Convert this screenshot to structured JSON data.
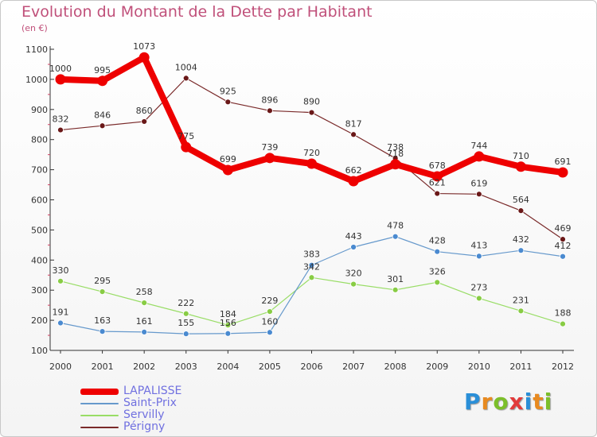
{
  "title": "Evolution du Montant de la Dette par Habitant",
  "subtitle": "(en €)",
  "chart_data": {
    "type": "line",
    "title": "Evolution du Montant de la Dette par Habitant",
    "subtitle": "(en €)",
    "xlabel": "",
    "ylabel": "",
    "x": [
      "2000",
      "2001",
      "2002",
      "2003",
      "2004",
      "2005",
      "2006",
      "2007",
      "2008",
      "2009",
      "2010",
      "2011",
      "2012"
    ],
    "ylim": [
      100,
      1100
    ],
    "yticks": [
      100,
      200,
      300,
      400,
      500,
      600,
      700,
      800,
      900,
      1000,
      1100
    ],
    "grid": false,
    "legend_position": "bottom-left",
    "series": [
      {
        "name": "LAPALISSE",
        "color": "#ee0000",
        "values": [
          1000,
          995,
          1073,
          775,
          699,
          739,
          720,
          662,
          718,
          678,
          744,
          710,
          691
        ]
      },
      {
        "name": "Saint-Prix",
        "color": "#6699cc",
        "values": [
          191,
          163,
          161,
          155,
          156,
          160,
          383,
          443,
          478,
          428,
          413,
          432,
          412
        ]
      },
      {
        "name": "Servilly",
        "color": "#99dd66",
        "values": [
          330,
          295,
          258,
          222,
          184,
          229,
          342,
          320,
          301,
          326,
          273,
          231,
          188
        ]
      },
      {
        "name": "Périgny",
        "color": "#7a2a2a",
        "values": [
          832,
          846,
          860,
          1004,
          925,
          896,
          890,
          817,
          738,
          621,
          619,
          564,
          469
        ]
      }
    ]
  },
  "logo": {
    "letters": [
      "P",
      "r",
      "o",
      "x",
      "i",
      "t",
      "i"
    ],
    "colors": [
      "#2a8fd8",
      "#e88a20",
      "#7cbf2a",
      "#e23a3a",
      "#2a8fd8",
      "#e88a20",
      "#7cbf2a"
    ]
  }
}
